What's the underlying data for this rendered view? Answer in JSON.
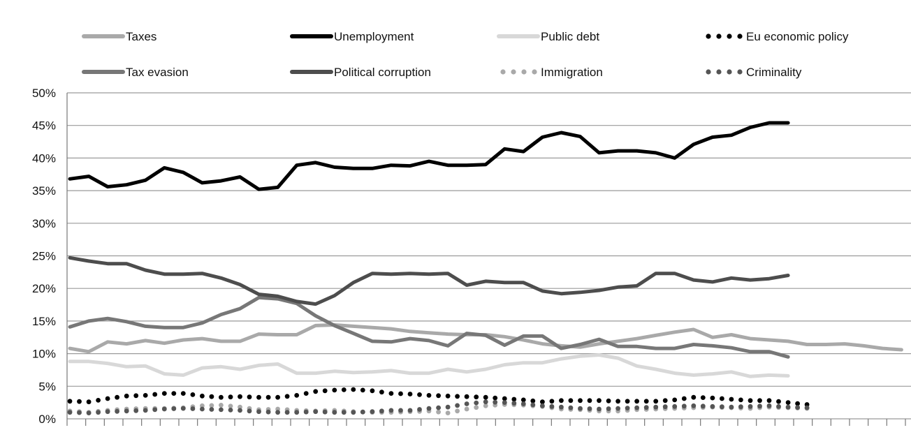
{
  "chart_data": {
    "type": "line",
    "title": "",
    "xlabel": "",
    "ylabel": "",
    "ylim": [
      0,
      50
    ],
    "y_ticks": [
      "0%",
      "5%",
      "10%",
      "15%",
      "20%",
      "25%",
      "30%",
      "35%",
      "40%",
      "45%",
      "50%"
    ],
    "y_tick_values": [
      0,
      5,
      10,
      15,
      20,
      25,
      30,
      35,
      40,
      45,
      50
    ],
    "grid": true,
    "legend_position": "top",
    "x_count": 45,
    "series": [
      {
        "name": "Taxes",
        "color": "#a9a9a9",
        "style": "solid",
        "values": [
          10.8,
          10.3,
          11.8,
          11.5,
          12.0,
          11.6,
          12.1,
          12.3,
          11.9,
          11.9,
          13.0,
          12.9,
          12.9,
          14.3,
          14.4,
          14.2,
          14.0,
          13.8,
          13.4,
          13.2,
          13.0,
          12.9,
          12.9,
          12.6,
          12.1,
          11.5,
          11.2,
          11.0,
          11.5,
          11.9,
          12.3,
          12.8,
          13.3,
          13.7,
          12.5,
          12.9,
          12.3,
          12.1,
          11.9,
          11.4,
          11.4,
          11.5,
          11.2,
          10.8,
          10.6
        ]
      },
      {
        "name": "Unemployment",
        "color": "#000000",
        "style": "solid",
        "values": [
          36.8,
          37.2,
          35.6,
          35.9,
          36.6,
          38.5,
          37.8,
          36.2,
          36.5,
          37.1,
          35.2,
          35.5,
          38.9,
          39.3,
          38.6,
          38.4,
          38.4,
          38.9,
          38.8,
          39.5,
          38.9,
          38.9,
          39.0,
          41.4,
          41.0,
          43.2,
          43.9,
          43.3,
          40.8,
          41.1,
          41.1,
          40.8,
          40.0,
          42.1,
          43.2,
          43.5,
          44.7,
          45.4,
          45.4
        ]
      },
      {
        "name": "Public debt",
        "color": "#d8d8d8",
        "style": "solid",
        "values": [
          8.8,
          8.8,
          8.5,
          8.0,
          8.1,
          6.9,
          6.7,
          7.8,
          8.0,
          7.6,
          8.2,
          8.4,
          7.0,
          7.0,
          7.3,
          7.1,
          7.2,
          7.4,
          7.0,
          7.0,
          7.6,
          7.2,
          7.6,
          8.3,
          8.6,
          8.6,
          9.2,
          9.6,
          9.8,
          9.3,
          8.1,
          7.6,
          7.0,
          6.7,
          6.9,
          7.2,
          6.5,
          6.7,
          6.6
        ]
      },
      {
        "name": "Eu economic policy",
        "color": "#000000",
        "style": "dotted",
        "values": [
          2.7,
          2.6,
          3.1,
          3.5,
          3.6,
          3.9,
          3.9,
          3.5,
          3.3,
          3.4,
          3.3,
          3.3,
          3.6,
          4.2,
          4.4,
          4.5,
          4.3,
          3.9,
          3.8,
          3.6,
          3.5,
          3.4,
          3.3,
          3.1,
          2.9,
          2.6,
          2.8,
          2.8,
          2.8,
          2.7,
          2.7,
          2.7,
          2.9,
          3.3,
          3.2,
          3.0,
          2.8,
          2.8,
          2.5,
          2.2
        ]
      },
      {
        "name": "Tax evasion",
        "color": "#777777",
        "style": "solid",
        "values": [
          14.1,
          15.0,
          15.4,
          14.9,
          14.2,
          14.0,
          14.0,
          14.7,
          16.0,
          16.9,
          18.6,
          18.4,
          17.7,
          15.8,
          14.3,
          13.1,
          11.9,
          11.8,
          12.3,
          12.0,
          11.2,
          13.1,
          12.8,
          11.3,
          12.7,
          12.7,
          10.8,
          11.4,
          12.2,
          11.1,
          11.1,
          10.8,
          10.8,
          11.4,
          11.2,
          10.9,
          10.3,
          10.3,
          9.5
        ]
      },
      {
        "name": "Political corruption",
        "color": "#4d4d4d",
        "style": "solid",
        "values": [
          24.7,
          24.2,
          23.8,
          23.8,
          22.8,
          22.2,
          22.2,
          22.3,
          21.6,
          20.6,
          19.1,
          18.8,
          18.0,
          17.6,
          18.9,
          20.9,
          22.3,
          22.2,
          22.3,
          22.2,
          22.3,
          20.5,
          21.1,
          20.9,
          20.9,
          19.6,
          19.2,
          19.4,
          19.7,
          20.2,
          20.4,
          22.3,
          22.3,
          21.3,
          21.0,
          21.6,
          21.3,
          21.5,
          22.0
        ]
      },
      {
        "name": "Immigration",
        "color": "#a9a9a9",
        "style": "dotted",
        "values": [
          1.2,
          1.0,
          1.3,
          1.5,
          1.6,
          1.6,
          1.7,
          2.0,
          2.1,
          1.8,
          1.4,
          1.5,
          1.3,
          1.2,
          1.3,
          1.1,
          1.0,
          1.0,
          1.1,
          1.2,
          0.9,
          1.5,
          2.0,
          2.2,
          2.1,
          1.9,
          1.5,
          1.4,
          1.2,
          1.2,
          1.4,
          1.5,
          1.6,
          1.7,
          1.8,
          1.7,
          1.6,
          1.8,
          1.7,
          1.6
        ]
      },
      {
        "name": "Criminality",
        "color": "#555555",
        "style": "dotted",
        "values": [
          1.0,
          0.9,
          1.1,
          1.2,
          1.3,
          1.5,
          1.6,
          1.5,
          1.4,
          1.3,
          1.1,
          1.0,
          1.0,
          1.1,
          1.0,
          1.0,
          1.1,
          1.3,
          1.3,
          1.6,
          1.8,
          2.3,
          2.6,
          2.5,
          2.3,
          2.0,
          1.8,
          1.6,
          1.5,
          1.6,
          1.7,
          1.8,
          1.9,
          2.0,
          1.9,
          1.8,
          1.9,
          2.0,
          1.8,
          1.7
        ]
      }
    ]
  }
}
